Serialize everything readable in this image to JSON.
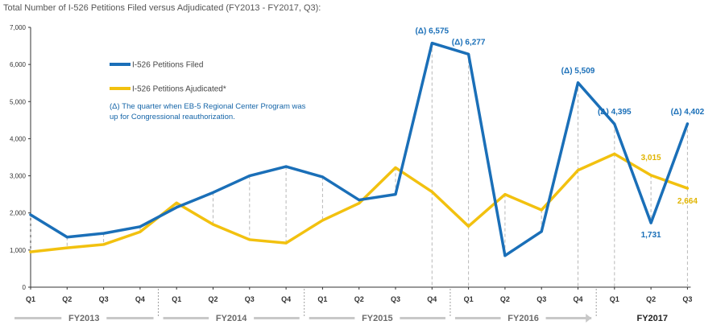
{
  "title": "Total Number of I-526 Petitions Filed versus Adjudicated (FY2013 - FY2017, Q3):",
  "colors": {
    "filed": "#1a6fb8",
    "adjudicated": "#f2c10f",
    "grid": "#b8b8b8",
    "fy_bar": "#c8c8c8",
    "filed_label": "#1a6fb8",
    "adj_label": "#e0b400"
  },
  "chart_data": {
    "type": "line",
    "title": "Total Number of I-526 Petitions Filed versus Adjudicated (FY2013 - FY2017, Q3):",
    "categories": [
      "Q1",
      "Q2",
      "Q3",
      "Q4",
      "Q1",
      "Q2",
      "Q3",
      "Q4",
      "Q1",
      "Q2",
      "Q3",
      "Q4",
      "Q1",
      "Q2",
      "Q3",
      "Q4",
      "Q1",
      "Q2",
      "Q3"
    ],
    "fiscal_years": [
      {
        "label": "FY2013",
        "quarters": 4
      },
      {
        "label": "FY2014",
        "quarters": 4
      },
      {
        "label": "FY2015",
        "quarters": 4
      },
      {
        "label": "FY2016",
        "quarters": 4
      },
      {
        "label": "FY2017",
        "quarters": 3
      }
    ],
    "series": [
      {
        "name": "I-526 Petitions Filed",
        "values": [
          1950,
          1350,
          1450,
          1630,
          2150,
          2550,
          3000,
          3250,
          2970,
          2350,
          2500,
          6575,
          6277,
          850,
          1500,
          5509,
          4395,
          1731,
          4402
        ]
      },
      {
        "name": "I-526 Petitions Ajudicated*",
        "values": [
          950,
          1060,
          1150,
          1490,
          2270,
          1690,
          1280,
          1190,
          1800,
          2260,
          3220,
          2570,
          1640,
          2500,
          2080,
          3150,
          3590,
          3015,
          2664
        ]
      }
    ],
    "yticks": [
      "0",
      "1,000",
      "2,000",
      "3,000",
      "4,000",
      "5,000",
      "6,000",
      "7,000"
    ],
    "ylim": [
      0,
      7000
    ],
    "grid": false,
    "legend_position": "top-left",
    "annotations": [
      {
        "series": 0,
        "index": 11,
        "text": "(Δ) 6,575"
      },
      {
        "series": 0,
        "index": 12,
        "text": "(Δ) 6,277"
      },
      {
        "series": 0,
        "index": 15,
        "text": "(Δ) 5,509"
      },
      {
        "series": 0,
        "index": 16,
        "text": "(Δ) 4,395"
      },
      {
        "series": 0,
        "index": 18,
        "text": "(Δ) 4,402"
      },
      {
        "series": 0,
        "index": 17,
        "text": "1,731"
      },
      {
        "series": 1,
        "index": 17,
        "text": "3,015"
      },
      {
        "series": 1,
        "index": 18,
        "text": "2,664"
      }
    ],
    "note_lines": [
      "(Δ) The quarter when EB-5 Regional Center Program was",
      "up for Congressional reauthorization."
    ]
  }
}
